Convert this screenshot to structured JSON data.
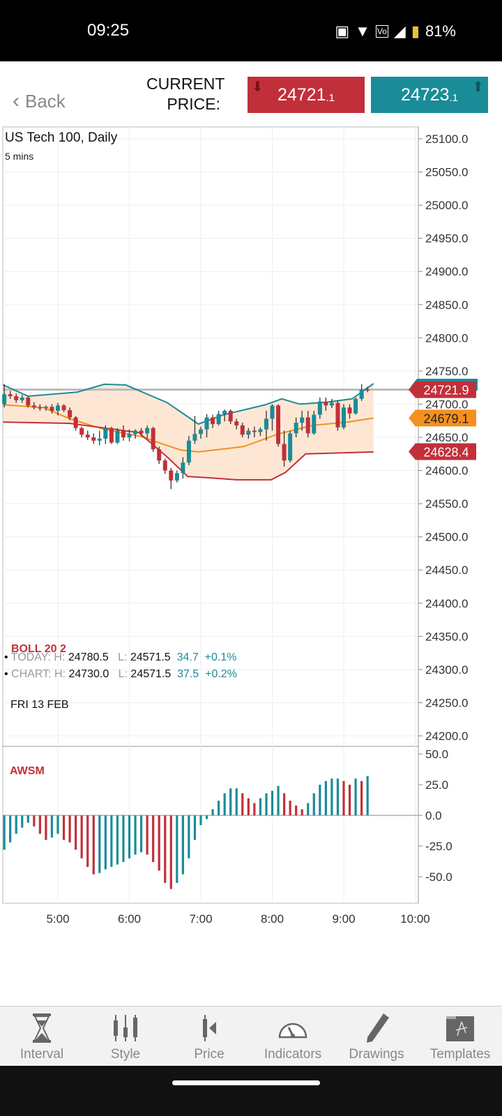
{
  "status": {
    "time": "09:25",
    "battery": "81%"
  },
  "header": {
    "back": "Back",
    "current_price": "CURRENT PRICE:",
    "sell": "24721",
    "sell_dec": ".1",
    "buy": "24723",
    "buy_dec": ".1"
  },
  "chart": {
    "title": "US Tech 100, Daily",
    "interval": "5 mins",
    "boll": "BOLL   20  2",
    "today": {
      "label": "TODAY: H:",
      "h": "24780.5",
      "l_label": "L:",
      "l": "24571.5",
      "chg": "34.7",
      "pct": "+0.1%"
    },
    "chartstats": {
      "label": "CHART: H:",
      "h": "24730.0",
      "l_label": "L:",
      "l": "24571.5",
      "chg": "37.5",
      "pct": "+0.2%"
    },
    "date": "FRI 13 FEB",
    "awsm": "AWSM"
  },
  "colors": {
    "up": "#1a8c98",
    "down": "#c1303a",
    "mid": "#f5901e",
    "band_fill": "#fde3cc"
  },
  "nav": [
    {
      "label": "Interval",
      "icon": "hourglass-icon"
    },
    {
      "label": "Style",
      "icon": "candlestick-icon"
    },
    {
      "label": "Price",
      "icon": "price-marker-icon"
    },
    {
      "label": "Indicators",
      "icon": "gauge-icon"
    },
    {
      "label": "Drawings",
      "icon": "pencil-icon"
    },
    {
      "label": "Templates",
      "icon": "folder-compass-icon"
    }
  ],
  "chart_data": {
    "type": "candlestick",
    "price_axis": {
      "min": 24200,
      "max": 25100,
      "step": 50,
      "ticks": [
        "25100.0",
        "25050.0",
        "25000.0",
        "24950.0",
        "24900.0",
        "24850.0",
        "24800.0",
        "24750.0",
        "24700.0",
        "24650.0",
        "24600.0",
        "24550.0",
        "24500.0",
        "24450.0",
        "24400.0",
        "24350.0",
        "24300.0",
        "24250.0",
        "24200.0"
      ]
    },
    "time_ticks": [
      "5:00",
      "6:00",
      "7:00",
      "8:00",
      "9:00",
      "10:00"
    ],
    "awsm_axis": {
      "ticks": [
        "50.0",
        "25.0",
        "0.0",
        "-25.0",
        "-50.0"
      ]
    },
    "price_tags": [
      {
        "label": "24721.9",
        "color": "#c1303a",
        "value": 24721.9
      },
      {
        "label": "24679.1",
        "color": "#f5901e",
        "value": 24679.1
      },
      {
        "label": "24628.4",
        "color": "#c1303a",
        "value": 24628.4
      }
    ],
    "current_line": 24721.9,
    "candles": [
      [
        "04:15",
        24700,
        24730,
        24695,
        24715
      ],
      [
        "04:20",
        24715,
        24720,
        24708,
        24712
      ],
      [
        "04:25",
        24712,
        24716,
        24702,
        24706
      ],
      [
        "04:30",
        24706,
        24714,
        24702,
        24710
      ],
      [
        "04:35",
        24710,
        24712,
        24695,
        24698
      ],
      [
        "04:40",
        24698,
        24703,
        24692,
        24695
      ],
      [
        "04:45",
        24695,
        24700,
        24690,
        24694
      ],
      [
        "04:50",
        24694,
        24698,
        24690,
        24696
      ],
      [
        "04:55",
        24696,
        24700,
        24686,
        24690
      ],
      [
        "05:00",
        24690,
        24702,
        24683,
        24698
      ],
      [
        "05:05",
        24698,
        24700,
        24688,
        24691
      ],
      [
        "05:10",
        24691,
        24695,
        24676,
        24680
      ],
      [
        "05:15",
        24680,
        24682,
        24660,
        24664
      ],
      [
        "05:20",
        24664,
        24666,
        24650,
        24654
      ],
      [
        "05:25",
        24654,
        24660,
        24646,
        24650
      ],
      [
        "05:30",
        24650,
        24656,
        24640,
        24645
      ],
      [
        "05:35",
        24645,
        24660,
        24638,
        24648
      ],
      [
        "05:40",
        24648,
        24668,
        24640,
        24664
      ],
      [
        "05:45",
        24664,
        24666,
        24640,
        24642
      ],
      [
        "05:50",
        24642,
        24664,
        24640,
        24660
      ],
      [
        "05:55",
        24660,
        24668,
        24645,
        24650
      ],
      [
        "06:00",
        24650,
        24662,
        24644,
        24655
      ],
      [
        "06:05",
        24655,
        24662,
        24648,
        24660
      ],
      [
        "06:10",
        24660,
        24664,
        24652,
        24656
      ],
      [
        "06:15",
        24656,
        24668,
        24648,
        24664
      ],
      [
        "06:20",
        24664,
        24666,
        24628,
        24632
      ],
      [
        "06:25",
        24632,
        24636,
        24610,
        24615
      ],
      [
        "06:30",
        24615,
        24618,
        24595,
        24600
      ],
      [
        "06:35",
        24600,
        24604,
        24572,
        24585
      ],
      [
        "06:40",
        24585,
        24600,
        24582,
        24596
      ],
      [
        "06:45",
        24596,
        24620,
        24588,
        24612
      ],
      [
        "06:50",
        24612,
        24652,
        24608,
        24645
      ],
      [
        "06:55",
        24645,
        24682,
        24640,
        24655
      ],
      [
        "07:00",
        24655,
        24666,
        24648,
        24662
      ],
      [
        "07:05",
        24662,
        24685,
        24650,
        24680
      ],
      [
        "07:10",
        24680,
        24684,
        24664,
        24670
      ],
      [
        "07:15",
        24670,
        24690,
        24668,
        24685
      ],
      [
        "07:20",
        24685,
        24692,
        24674,
        24690
      ],
      [
        "07:25",
        24690,
        24692,
        24670,
        24674
      ],
      [
        "07:30",
        24674,
        24678,
        24662,
        24668
      ],
      [
        "07:35",
        24668,
        24672,
        24650,
        24654
      ],
      [
        "07:40",
        24654,
        24664,
        24648,
        24660
      ],
      [
        "07:45",
        24660,
        24666,
        24650,
        24658
      ],
      [
        "07:50",
        24658,
        24665,
        24652,
        24662
      ],
      [
        "07:55",
        24662,
        24690,
        24645,
        24678
      ],
      [
        "08:00",
        24678,
        24700,
        24660,
        24698
      ],
      [
        "08:05",
        24698,
        24700,
        24636,
        24640
      ],
      [
        "08:10",
        24640,
        24660,
        24606,
        24615
      ],
      [
        "08:15",
        24615,
        24660,
        24612,
        24656
      ],
      [
        "08:20",
        24656,
        24680,
        24650,
        24672
      ],
      [
        "08:25",
        24672,
        24690,
        24660,
        24680
      ],
      [
        "08:30",
        24680,
        24690,
        24650,
        24656
      ],
      [
        "08:35",
        24656,
        24690,
        24654,
        24684
      ],
      [
        "08:40",
        24684,
        24710,
        24678,
        24704
      ],
      [
        "08:45",
        24704,
        24710,
        24690,
        24698
      ],
      [
        "08:50",
        24698,
        24708,
        24694,
        24702
      ],
      [
        "08:55",
        24702,
        24706,
        24660,
        24665
      ],
      [
        "09:00",
        24665,
        24700,
        24662,
        24695
      ],
      [
        "09:05",
        24695,
        24700,
        24678,
        24686
      ],
      [
        "09:10",
        24686,
        24710,
        24684,
        24708
      ],
      [
        "09:15",
        24708,
        24730,
        24705,
        24722
      ],
      [
        "09:20",
        24722,
        24726,
        24718,
        24721.9
      ]
    ],
    "boll_upper": [
      [
        "04:14",
        24729
      ],
      [
        "04:35",
        24712
      ],
      [
        "05:16",
        24718
      ],
      [
        "05:39",
        24730
      ],
      [
        "05:57",
        24729
      ],
      [
        "06:32",
        24702
      ],
      [
        "06:58",
        24670
      ],
      [
        "07:19",
        24684
      ],
      [
        "07:54",
        24699
      ],
      [
        "08:08",
        24708
      ],
      [
        "08:23",
        24700
      ],
      [
        "08:46",
        24703
      ],
      [
        "09:07",
        24708
      ],
      [
        "09:25",
        24731
      ]
    ],
    "boll_mid": [
      [
        "04:14",
        24699
      ],
      [
        "04:48",
        24695
      ],
      [
        "05:10",
        24678
      ],
      [
        "05:39",
        24662
      ],
      [
        "06:08",
        24652
      ],
      [
        "06:43",
        24631
      ],
      [
        "06:58",
        24628
      ],
      [
        "07:36",
        24636
      ],
      [
        "08:05",
        24655
      ],
      [
        "08:34",
        24668
      ],
      [
        "09:03",
        24673
      ],
      [
        "09:25",
        24679
      ]
    ],
    "boll_lower": [
      [
        "04:14",
        24673
      ],
      [
        "05:10",
        24671
      ],
      [
        "06:08",
        24657
      ],
      [
        "06:32",
        24620
      ],
      [
        "06:49",
        24591
      ],
      [
        "07:07",
        24589
      ],
      [
        "07:30",
        24586
      ],
      [
        "07:59",
        24586
      ],
      [
        "08:11",
        24597
      ],
      [
        "08:28",
        24625
      ],
      [
        "09:25",
        24628
      ]
    ],
    "awsm": [
      -28,
      -22,
      -15,
      -10,
      -6,
      -9,
      -15,
      -20,
      -18,
      -15,
      -20,
      -22,
      -28,
      -35,
      -42,
      -48,
      -47,
      -44,
      -42,
      -40,
      -38,
      -35,
      -32,
      -30,
      -32,
      -38,
      -45,
      -55,
      -60,
      -55,
      -48,
      -35,
      -20,
      -8,
      -3,
      5,
      12,
      18,
      22,
      22,
      18,
      14,
      10,
      14,
      18,
      20,
      24,
      18,
      12,
      8,
      5,
      10,
      18,
      25,
      28,
      30,
      30,
      28,
      25,
      30,
      28,
      32
    ]
  }
}
